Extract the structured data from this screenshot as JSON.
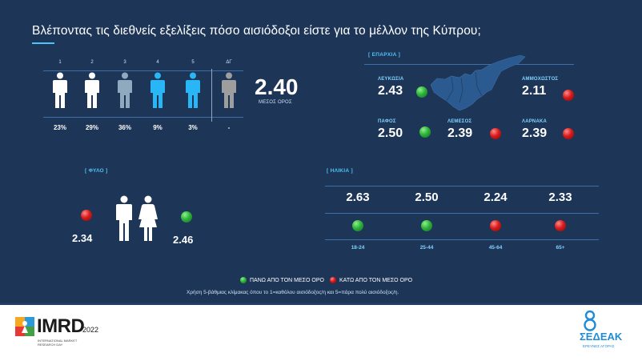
{
  "title": "Βλέποντας τις διεθνείς εξελίξεις πόσο αισιόδοξοι είστε για το μέλλον της Κύπρου;",
  "scale": {
    "columns": [
      {
        "num": "1",
        "pct": "23%",
        "color": "#ffffff"
      },
      {
        "num": "2",
        "pct": "29%",
        "color": "#ffffff"
      },
      {
        "num": "3",
        "pct": "36%",
        "color": "#8fa9bf"
      },
      {
        "num": "4",
        "pct": "9%",
        "color": "#29b6f6"
      },
      {
        "num": "5",
        "pct": "3%",
        "color": "#29b6f6"
      },
      {
        "num": "ΔΓ",
        "pct": "-",
        "color": "#9e9e9e"
      }
    ],
    "mean_value": "2.40",
    "mean_label": "ΜΕΣΟΣ ΟΡΟΣ"
  },
  "province": {
    "label": "[ ΕΠΑΡΧΙΑ ]",
    "regions": [
      {
        "name": "ΛΕΥΚΩΣΙΑ",
        "value": "2.43",
        "status": "green"
      },
      {
        "name": "ΑΜΜΟΧΩΣΤΟΣ",
        "value": "2.11",
        "status": "red"
      },
      {
        "name": "ΠΑΦΟΣ",
        "value": "2.50",
        "status": "green"
      },
      {
        "name": "ΛΕΜΕΣΟΣ",
        "value": "2.39",
        "status": "red"
      },
      {
        "name": "ΛΑΡΝΑΚΑ",
        "value": "2.39",
        "status": "red"
      }
    ],
    "map_color": "#2a5a8f"
  },
  "gender": {
    "label": "[ ΦΥΛΟ ]",
    "male_value": "2.34",
    "male_status": "red",
    "female_value": "2.46",
    "female_status": "green"
  },
  "age": {
    "label": "[ ΗΛΙΚΙΑ ]",
    "groups": [
      {
        "value": "2.63",
        "status": "green",
        "label": "18-24"
      },
      {
        "value": "2.50",
        "status": "green",
        "label": "25-44"
      },
      {
        "value": "2.24",
        "status": "red",
        "label": "45-64"
      },
      {
        "value": "2.33",
        "status": "red",
        "label": "65+"
      }
    ]
  },
  "legend": {
    "above": "ΠΑΝΩ ΑΠΟ ΤΟΝ ΜΕΣΟ ΟΡΟ",
    "below": "ΚΑΤΩ ΑΠΟ ΤΟΝ ΜΕΣΟ ΟΡΟ",
    "footnote": "Χρήση 5-βάθμιας κλίμακας όπου το 1=καθόλου αισιόδοξος/η και 5=πάρα πολύ αισιόδοξος/η."
  },
  "footer": {
    "imrd_name": "IMRD",
    "imrd_year": "2022",
    "imrd_sub_1": "INTERNATIONAL MARKET",
    "imrd_sub_2": "RESEARCH DAY",
    "sedeak_name": "ΣΕΔΕΑΚ",
    "sedeak_sub": "ΕΡΕΥΝΕΣ ΑΓΟΡΑΣ"
  },
  "colors": {
    "background": "#1d3557",
    "accent": "#4fc3f7",
    "above_mean": "#2fb33c",
    "below_mean": "#d91b1b"
  }
}
